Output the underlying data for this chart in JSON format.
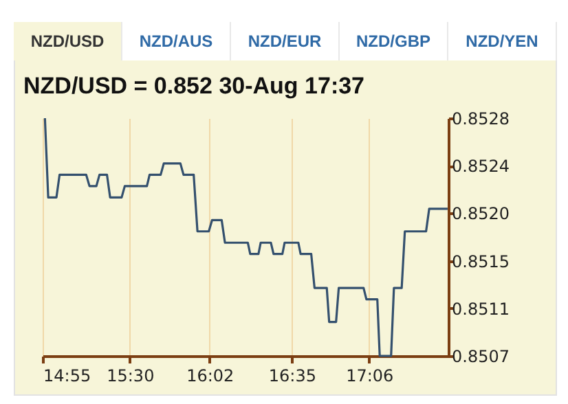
{
  "chart_data": {
    "type": "line",
    "title": "NZD/USD = 0.852 30-Aug 17:37",
    "annotations": [
      "NZD/USD",
      "NZD/AUS",
      "NZD/EUR",
      "NZD/GBP",
      "NZD/YEN"
    ],
    "x": [
      14.932,
      14.954,
      15.009,
      15.03,
      15.208,
      15.23,
      15.276,
      15.297,
      15.347,
      15.368,
      15.445,
      15.466,
      15.614,
      15.632,
      15.706,
      15.727,
      15.838,
      15.859,
      15.927,
      15.952,
      16.028,
      16.05,
      16.114,
      16.136,
      16.289,
      16.305,
      16.36,
      16.375,
      16.443,
      16.461,
      16.52,
      16.535,
      16.596,
      16.627,
      16.642,
      16.713,
      16.735,
      16.817,
      16.833,
      16.879,
      16.897,
      17.063,
      17.082,
      17.155,
      17.171,
      17.247,
      17.266,
      17.318,
      17.339,
      17.481,
      17.502,
      17.625
    ],
    "series": [
      {
        "color": "#34506e",
        "values": [
          0.8528,
          0.8521,
          0.8521,
          0.8523,
          0.8523,
          0.8522,
          0.8522,
          0.8523,
          0.8523,
          0.8521,
          0.8521,
          0.8522,
          0.8522,
          0.8523,
          0.8523,
          0.8524,
          0.8524,
          0.8523,
          0.8523,
          0.8518,
          0.8518,
          0.8519,
          0.8519,
          0.8517,
          0.8517,
          0.8516,
          0.8516,
          0.8517,
          0.8517,
          0.8516,
          0.8516,
          0.8517,
          0.8517,
          0.8517,
          0.8516,
          0.8516,
          0.8513,
          0.8513,
          0.851,
          0.851,
          0.8513,
          0.8513,
          0.8512,
          0.8512,
          0.8507,
          0.8507,
          0.8513,
          0.8513,
          0.8518,
          0.8518,
          0.852,
          0.852
        ]
      }
    ],
    "xlim": [
      14.9167,
      17.63
    ],
    "xticks": [
      {
        "value": 14.9167,
        "label": "14:55"
      },
      {
        "value": 15.5,
        "label": "15:30"
      },
      {
        "value": 16.0333,
        "label": "16:02"
      },
      {
        "value": 16.5833,
        "label": "16:35"
      },
      {
        "value": 17.1,
        "label": "17:06"
      }
    ],
    "ylim": [
      0.8507,
      0.8528
    ],
    "yticks": [
      0.8507,
      {
        "value": 0.85112,
        "label": "0.8511"
      },
      {
        "value": 0.85154,
        "label": "0.8515"
      },
      {
        "value": 0.85196,
        "label": "0.8520"
      },
      {
        "value": 0.85238,
        "label": "0.8524"
      },
      0.8528
    ],
    "grid": "x",
    "line_style": "solid",
    "marker": "none"
  }
}
